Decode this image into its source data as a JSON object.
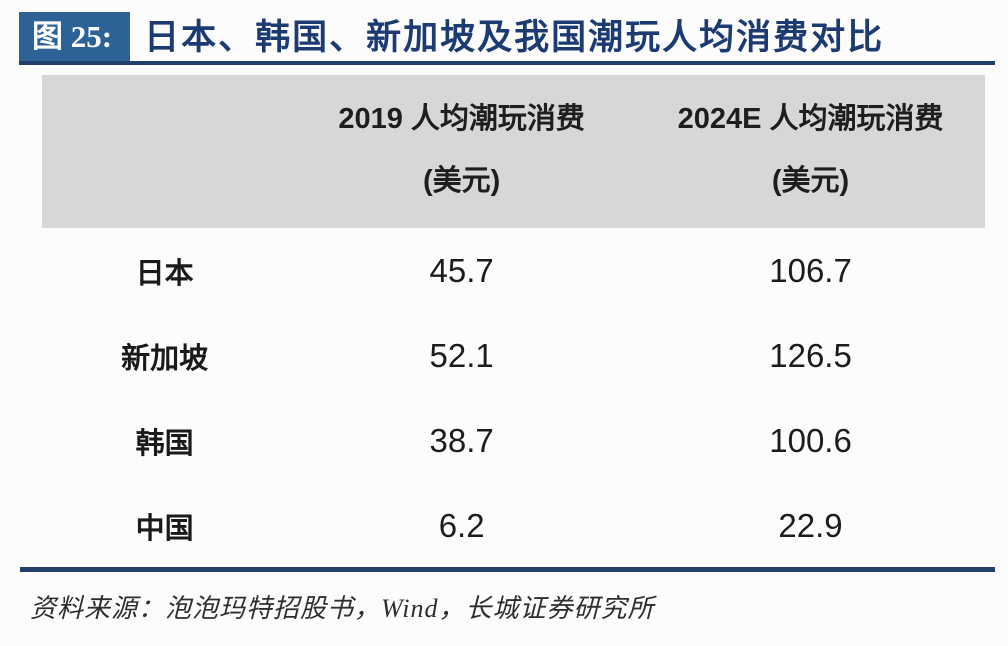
{
  "figure": {
    "badge": "图 25:",
    "title": "日本、韩国、新加坡及我国潮玩人均消费对比"
  },
  "table": {
    "columns": [
      {
        "line1": "2019 人均潮玩消费",
        "line2": "(美元)"
      },
      {
        "line1": "2024E 人均潮玩消费",
        "line2": "(美元)"
      }
    ],
    "rows": [
      {
        "label": "日本",
        "v2019": "45.7",
        "v2024e": "106.7"
      },
      {
        "label": "新加坡",
        "v2019": "52.1",
        "v2024e": "126.5"
      },
      {
        "label": "韩国",
        "v2019": "38.7",
        "v2024e": "100.6"
      },
      {
        "label": "中国",
        "v2019": "6.2",
        "v2024e": "22.9"
      }
    ]
  },
  "source": "资料来源：泡泡玛特招股书，Wind，长城证券研究所",
  "colors": {
    "badge_bg": "#2c6295",
    "title_text": "#1b3b72",
    "rule_navy": "#20406a",
    "header_gray": "#d8d7d5",
    "body_text": "#1c1c1c",
    "page_bg": "#fcfcfc"
  },
  "chart_data": {
    "type": "table",
    "title": "图 25: 日本、韩国、新加坡及我国潮玩人均消费对比",
    "categories": [
      "日本",
      "新加坡",
      "韩国",
      "中国"
    ],
    "series": [
      {
        "name": "2019 人均潮玩消费 (美元)",
        "values": [
          45.7,
          52.1,
          38.7,
          6.2
        ]
      },
      {
        "name": "2024E 人均潮玩消费 (美元)",
        "values": [
          106.7,
          126.5,
          100.6,
          22.9
        ]
      }
    ],
    "source": "资料来源：泡泡玛特招股书，Wind，长城证券研究所"
  }
}
